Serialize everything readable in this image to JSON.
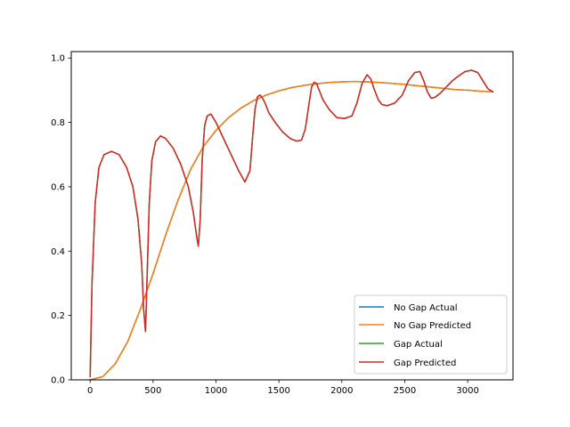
{
  "chart_data": {
    "type": "line",
    "title": "",
    "xlabel": "",
    "ylabel": "",
    "xlim": [
      -150,
      3360
    ],
    "ylim": [
      0.0,
      1.02
    ],
    "grid": false,
    "legend_position": "lower-right",
    "x_ticks": [
      0,
      500,
      1000,
      1500,
      2000,
      2500,
      3000
    ],
    "y_ticks": [
      0.0,
      0.2,
      0.4,
      0.6,
      0.8,
      1.0
    ],
    "x_tick_labels": [
      "0",
      "500",
      "1000",
      "1500",
      "2000",
      "2500",
      "3000"
    ],
    "y_tick_labels": [
      "0.0",
      "0.2",
      "0.4",
      "0.6",
      "0.8",
      "1.0"
    ],
    "series": [
      {
        "name": "No Gap Actual",
        "color": "#1f77b4",
        "x": [
          0,
          100,
          200,
          300,
          400,
          500,
          600,
          700,
          800,
          900,
          1000,
          1100,
          1200,
          1300,
          1400,
          1500,
          1600,
          1700,
          1800,
          1900,
          2000,
          2100,
          2200,
          2300,
          2400,
          2500,
          2600,
          2700,
          2800,
          2900,
          3000,
          3100,
          3200
        ],
        "y": [
          0.0,
          0.01,
          0.05,
          0.12,
          0.22,
          0.33,
          0.45,
          0.56,
          0.655,
          0.725,
          0.775,
          0.815,
          0.845,
          0.868,
          0.885,
          0.898,
          0.908,
          0.915,
          0.92,
          0.924,
          0.926,
          0.927,
          0.926,
          0.924,
          0.921,
          0.918,
          0.914,
          0.91,
          0.906,
          0.902,
          0.9,
          0.897,
          0.895
        ]
      },
      {
        "name": "No Gap Predicted",
        "color": "#ff7f0e",
        "x": [
          0,
          100,
          200,
          300,
          400,
          500,
          600,
          700,
          800,
          900,
          1000,
          1100,
          1200,
          1300,
          1400,
          1500,
          1600,
          1700,
          1800,
          1900,
          2000,
          2100,
          2200,
          2300,
          2400,
          2500,
          2600,
          2700,
          2800,
          2900,
          3000,
          3100,
          3200
        ],
        "y": [
          0.0,
          0.01,
          0.05,
          0.12,
          0.22,
          0.33,
          0.45,
          0.56,
          0.655,
          0.725,
          0.775,
          0.815,
          0.845,
          0.868,
          0.885,
          0.898,
          0.908,
          0.915,
          0.92,
          0.924,
          0.926,
          0.927,
          0.926,
          0.924,
          0.921,
          0.918,
          0.914,
          0.91,
          0.906,
          0.902,
          0.9,
          0.897,
          0.895
        ]
      },
      {
        "name": "Gap Actual",
        "color": "#2ca02c",
        "x": [
          0,
          15,
          40,
          70,
          110,
          170,
          230,
          290,
          340,
          380,
          410,
          425,
          440,
          455,
          470,
          490,
          520,
          560,
          600,
          660,
          720,
          780,
          820,
          845,
          860,
          875,
          890,
          910,
          930,
          960,
          1000,
          1060,
          1120,
          1180,
          1230,
          1270,
          1290,
          1310,
          1330,
          1350,
          1370,
          1390,
          1420,
          1470,
          1530,
          1590,
          1640,
          1680,
          1710,
          1740,
          1760,
          1780,
          1800,
          1820,
          1850,
          1900,
          1960,
          2020,
          2080,
          2120,
          2160,
          2200,
          2230,
          2260,
          2290,
          2320,
          2360,
          2420,
          2480,
          2530,
          2580,
          2620,
          2650,
          2680,
          2710,
          2740,
          2780,
          2830,
          2880,
          2930,
          2980,
          3030,
          3080,
          3120,
          3160,
          3200
        ],
        "y": [
          0.01,
          0.3,
          0.55,
          0.66,
          0.7,
          0.71,
          0.7,
          0.66,
          0.6,
          0.5,
          0.36,
          0.22,
          0.15,
          0.35,
          0.55,
          0.68,
          0.74,
          0.758,
          0.75,
          0.72,
          0.67,
          0.6,
          0.52,
          0.45,
          0.415,
          0.5,
          0.68,
          0.79,
          0.82,
          0.826,
          0.8,
          0.75,
          0.7,
          0.65,
          0.615,
          0.65,
          0.75,
          0.84,
          0.88,
          0.885,
          0.875,
          0.86,
          0.83,
          0.8,
          0.77,
          0.75,
          0.742,
          0.745,
          0.78,
          0.86,
          0.91,
          0.925,
          0.92,
          0.9,
          0.87,
          0.84,
          0.815,
          0.812,
          0.82,
          0.86,
          0.92,
          0.948,
          0.935,
          0.9,
          0.87,
          0.855,
          0.852,
          0.86,
          0.885,
          0.93,
          0.955,
          0.958,
          0.93,
          0.895,
          0.875,
          0.878,
          0.89,
          0.91,
          0.93,
          0.945,
          0.958,
          0.962,
          0.955,
          0.93,
          0.905,
          0.895
        ]
      },
      {
        "name": "Gap Predicted",
        "color": "#d62728",
        "x": [
          0,
          15,
          40,
          70,
          110,
          170,
          230,
          290,
          340,
          380,
          410,
          425,
          440,
          455,
          470,
          490,
          520,
          560,
          600,
          660,
          720,
          780,
          820,
          845,
          860,
          875,
          890,
          910,
          930,
          960,
          1000,
          1060,
          1120,
          1180,
          1230,
          1270,
          1290,
          1310,
          1330,
          1350,
          1370,
          1390,
          1420,
          1470,
          1530,
          1590,
          1640,
          1680,
          1710,
          1740,
          1760,
          1780,
          1800,
          1820,
          1850,
          1900,
          1960,
          2020,
          2080,
          2120,
          2160,
          2200,
          2230,
          2260,
          2290,
          2320,
          2360,
          2420,
          2480,
          2530,
          2580,
          2620,
          2650,
          2680,
          2710,
          2740,
          2780,
          2830,
          2880,
          2930,
          2980,
          3030,
          3080,
          3120,
          3160,
          3200
        ],
        "y": [
          0.01,
          0.3,
          0.55,
          0.66,
          0.7,
          0.71,
          0.7,
          0.66,
          0.6,
          0.5,
          0.36,
          0.22,
          0.15,
          0.35,
          0.55,
          0.68,
          0.74,
          0.758,
          0.75,
          0.72,
          0.67,
          0.6,
          0.52,
          0.45,
          0.415,
          0.5,
          0.68,
          0.79,
          0.82,
          0.826,
          0.8,
          0.75,
          0.7,
          0.65,
          0.615,
          0.65,
          0.75,
          0.84,
          0.88,
          0.885,
          0.875,
          0.86,
          0.83,
          0.8,
          0.77,
          0.75,
          0.742,
          0.745,
          0.78,
          0.86,
          0.91,
          0.925,
          0.92,
          0.9,
          0.87,
          0.84,
          0.815,
          0.812,
          0.82,
          0.86,
          0.92,
          0.948,
          0.935,
          0.9,
          0.87,
          0.855,
          0.852,
          0.86,
          0.885,
          0.93,
          0.955,
          0.958,
          0.93,
          0.895,
          0.875,
          0.878,
          0.89,
          0.91,
          0.93,
          0.945,
          0.958,
          0.962,
          0.955,
          0.93,
          0.905,
          0.895
        ]
      }
    ]
  }
}
